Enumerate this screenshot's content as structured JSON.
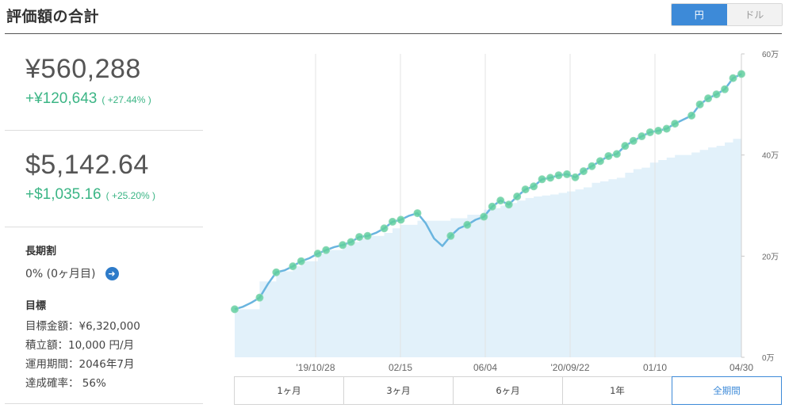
{
  "header": {
    "title": "評価額の合計",
    "currency_options": [
      "円",
      "ドル"
    ],
    "selected_currency": "円",
    "active_color": "#3d8ad8"
  },
  "summary": {
    "jpy": {
      "value": "¥560,288",
      "gain": "+¥120,643",
      "gain_pct": "( +27.44% )"
    },
    "usd": {
      "value": "$5,142.64",
      "gain": "+$1,035.16",
      "gain_pct": "( +25.20% )"
    },
    "gain_color": "#3bb585"
  },
  "long_term": {
    "title": "長期割",
    "value": "0% (0ヶ月目)",
    "link_icon": "arrow-right-circle-icon"
  },
  "goal": {
    "title": "目標",
    "lines": [
      "目標金額：¥6,320,000",
      "積立額：10,000 円/月",
      "運用期間：2046年7月",
      "達成確率： 56%"
    ]
  },
  "range_tabs": [
    "1ヶ月",
    "3ヶ月",
    "6ヶ月",
    "1年",
    "全期間"
  ],
  "selected_range": "全期間",
  "chart_data": {
    "type": "area",
    "title": "",
    "xlabel": "",
    "ylabel": "",
    "x_ticks": [
      "'19/10/28",
      "02/15",
      "06/04",
      "'20/09/22",
      "01/10",
      "04/30"
    ],
    "y_ticks": [
      "0万",
      "20万",
      "40万",
      "60万"
    ],
    "ylim": [
      0,
      600000
    ],
    "y_axis_side": "right",
    "grid": "vertical",
    "series": [
      {
        "role": "valuation",
        "color": "#6ab5df",
        "values": [
          95000,
          100000,
          108000,
          118000,
          145000,
          168000,
          172000,
          180000,
          190000,
          196000,
          205000,
          212000,
          218000,
          222000,
          228000,
          238000,
          240000,
          246000,
          255000,
          268000,
          272000,
          280000,
          285000,
          265000,
          235000,
          220000,
          240000,
          255000,
          262000,
          272000,
          278000,
          298000,
          310000,
          302000,
          318000,
          332000,
          338000,
          352000,
          355000,
          360000,
          362000,
          356000,
          368000,
          378000,
          388000,
          398000,
          402000,
          418000,
          428000,
          437000,
          445000,
          448000,
          452000,
          462000,
          470000,
          478000,
          500000,
          512000,
          520000,
          530000,
          552000,
          560288
        ]
      },
      {
        "role": "principal",
        "color": "#e2f1fa",
        "values": [
          95000,
          95000,
          95000,
          150000,
          150000,
          170000,
          170000,
          180000,
          190000,
          190000,
          205000,
          212000,
          212000,
          222000,
          228000,
          235000,
          240000,
          240000,
          246000,
          255000,
          262000,
          262000,
          270000,
          270000,
          270000,
          270000,
          275000,
          275000,
          282000,
          282000,
          292000,
          295000,
          300000,
          305000,
          310000,
          315000,
          318000,
          320000,
          322000,
          325000,
          328000,
          332000,
          336000,
          345000,
          348000,
          352000,
          355000,
          365000,
          372000,
          375000,
          385000,
          390000,
          395000,
          400000,
          400000,
          405000,
          410000,
          415000,
          418000,
          425000,
          432000,
          440000
        ]
      }
    ]
  }
}
